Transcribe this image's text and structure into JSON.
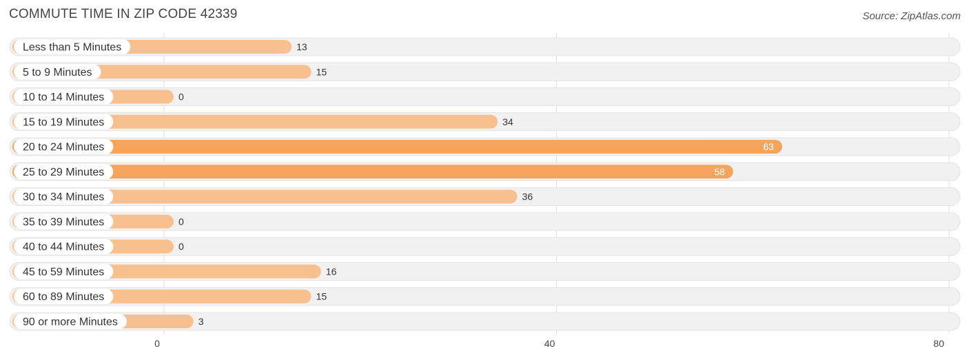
{
  "chart_data": {
    "type": "bar",
    "orientation": "horizontal",
    "title": "COMMUTE TIME IN ZIP CODE 42339",
    "source": "Source: ZipAtlas.com",
    "categories": [
      "Less than 5 Minutes",
      "5 to 9 Minutes",
      "10 to 14 Minutes",
      "15 to 19 Minutes",
      "20 to 24 Minutes",
      "25 to 29 Minutes",
      "30 to 34 Minutes",
      "35 to 39 Minutes",
      "40 to 44 Minutes",
      "45 to 59 Minutes",
      "60 to 89 Minutes",
      "90 or more Minutes"
    ],
    "values": [
      13,
      15,
      0,
      34,
      63,
      58,
      36,
      0,
      0,
      16,
      15,
      3
    ],
    "value_labels": [
      "13",
      "15",
      "0",
      "34",
      "63",
      "58",
      "36",
      "0",
      "0",
      "16",
      "15",
      "3"
    ],
    "xlim": [
      0,
      80
    ],
    "ticks": [
      0,
      40,
      80
    ],
    "tick_labels": [
      "0",
      "40",
      "80"
    ],
    "xlabel": "",
    "ylabel": "",
    "grid": true,
    "colors": {
      "bar_normal": "#f9c08f",
      "bar_highlight": "#f5a45c",
      "track": "#f1f1f1",
      "track_border": "#e2e2e2",
      "grid": "#dddddd"
    },
    "highlight_threshold": 50
  }
}
